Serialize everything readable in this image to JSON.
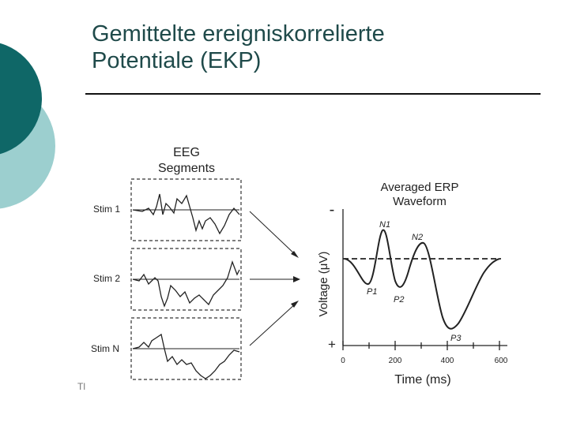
{
  "slide": {
    "title_line1": "Gemittelte ereigniskorrelierte",
    "title_line2": "Potentiale (EKP)"
  },
  "figure": {
    "eeg_title_line1": "EEG",
    "eeg_title_line2": "Segments",
    "stim_labels": [
      "Stim 1",
      "Stim 2",
      "Stim N"
    ],
    "erp_title_line1": "Averaged ERP",
    "erp_title_line2": "Waveform",
    "y_axis_label": "Voltage (μV)",
    "y_minus": "-",
    "y_plus": "+",
    "x_ticks": [
      "0",
      "200",
      "400",
      "600"
    ],
    "x_axis_label": "Time (ms)",
    "peaks": [
      "N1",
      "N2",
      "P1",
      "P2",
      "P3"
    ],
    "footer_fragment": "Tl"
  },
  "colors": {
    "teal_dark": "#0f6767",
    "teal_light": "#9ccfcf"
  }
}
